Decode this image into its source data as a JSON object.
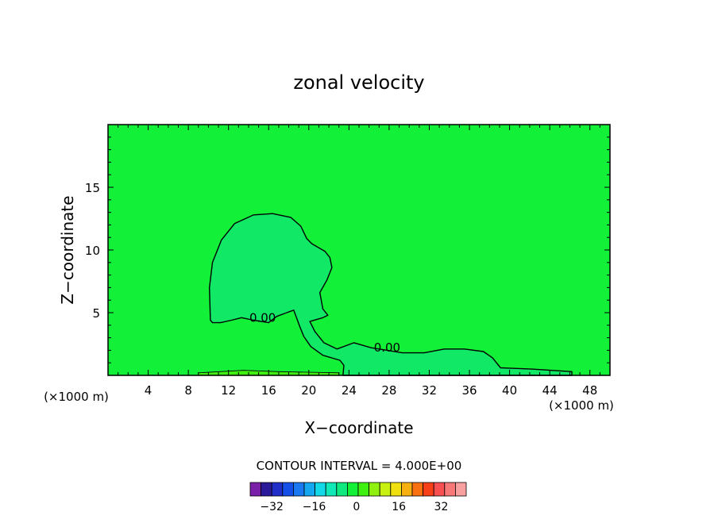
{
  "chart_data": {
    "type": "contour",
    "title": "zonal velocity",
    "xlabel": "X−coordinate",
    "ylabel": "Z−coordinate",
    "x_unit": "(×1000 m)",
    "y_unit": "(×1000 m)",
    "xlim": [
      0,
      50
    ],
    "ylim": [
      0,
      20
    ],
    "x_ticks": [
      4,
      8,
      12,
      16,
      20,
      24,
      28,
      32,
      36,
      40,
      44,
      48
    ],
    "y_ticks": [
      5,
      10,
      15
    ],
    "contour_interval_text": "CONTOUR INTERVAL = 4.000E+00",
    "contour_labels": [
      {
        "text": "0.00",
        "x": 15.4,
        "y": 4.6
      },
      {
        "text": "0.00",
        "x": 27.8,
        "y": 2.2
      }
    ],
    "regions": [
      {
        "name": "positive-core",
        "outline": [
          [
            10.2,
            4.4
          ],
          [
            10.1,
            7
          ],
          [
            10.4,
            9
          ],
          [
            11.3,
            10.8
          ],
          [
            12.6,
            12.1
          ],
          [
            14.5,
            12.8
          ],
          [
            16.4,
            12.9
          ],
          [
            18.2,
            12.6
          ],
          [
            19.2,
            11.9
          ],
          [
            19.8,
            10.9
          ],
          [
            20.3,
            10.5
          ],
          [
            21.6,
            9.9
          ],
          [
            22.1,
            9.4
          ],
          [
            22.3,
            8.6
          ],
          [
            21.8,
            7.6
          ],
          [
            21.1,
            6.6
          ],
          [
            21.4,
            5.3
          ],
          [
            21.9,
            4.8
          ],
          [
            21.4,
            4.6
          ],
          [
            20.1,
            4.3
          ],
          [
            20.6,
            3.5
          ],
          [
            21.5,
            2.6
          ],
          [
            22.8,
            2.1
          ],
          [
            24.5,
            2.6
          ],
          [
            26.2,
            2.2
          ],
          [
            27.8,
            2.0
          ],
          [
            29.3,
            1.8
          ],
          [
            31.5,
            1.8
          ],
          [
            33.5,
            2.1
          ],
          [
            35.5,
            2.1
          ],
          [
            37.4,
            1.9
          ],
          [
            38.3,
            1.4
          ],
          [
            39.1,
            0.6
          ],
          [
            42.2,
            0.5
          ],
          [
            46.2,
            0.3
          ],
          [
            46.2,
            0
          ],
          [
            23.4,
            0
          ],
          [
            23.5,
            0.8
          ],
          [
            23.1,
            1.2
          ],
          [
            21.4,
            1.6
          ],
          [
            20.2,
            2.3
          ],
          [
            19.5,
            3.1
          ],
          [
            19.1,
            3.9
          ],
          [
            18.5,
            5.2
          ],
          [
            17.8,
            5.0
          ],
          [
            16.8,
            4.7
          ],
          [
            16.0,
            4.2
          ],
          [
            14.5,
            4.4
          ],
          [
            13.3,
            4.6
          ],
          [
            12.3,
            4.4
          ],
          [
            11.2,
            4.2
          ],
          [
            10.4,
            4.2
          ]
        ]
      },
      {
        "name": "ground-band",
        "outline": [
          [
            9.0,
            0.2
          ],
          [
            13.5,
            0.4
          ],
          [
            17.0,
            0.3
          ],
          [
            23.0,
            0.2
          ],
          [
            23.0,
            0
          ],
          [
            9.0,
            0
          ]
        ]
      }
    ],
    "colorbar": {
      "ticks": [
        "−32",
        "−16",
        "0",
        "16",
        "32"
      ],
      "colors": [
        "#7a1fa8",
        "#2a1a9a",
        "#1f2fc8",
        "#1450e8",
        "#1a78f0",
        "#15a8f0",
        "#12d8e8",
        "#10e8b8",
        "#10e880",
        "#12f038",
        "#40f010",
        "#90f010",
        "#c8f010",
        "#f0e010",
        "#f8b010",
        "#f87010",
        "#f84018",
        "#f85050",
        "#f87878",
        "#f8a0a0"
      ],
      "zero_index": 9
    },
    "field_color": "#12f038",
    "core_color": "#10e866",
    "band_color": "#40f010"
  }
}
